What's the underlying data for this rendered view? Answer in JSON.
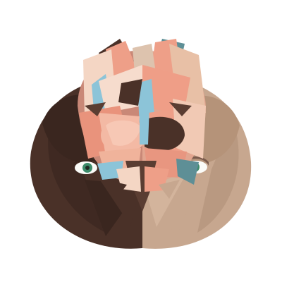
{
  "artwork": {
    "subject": "geometric-paper-cut-face",
    "palette": {
      "background": "#ffffff",
      "dark_brown": "#4a3128",
      "deep_brown": "#3a261f",
      "tan": "#c7a78f",
      "light_tan": "#ddc3ae",
      "salmon": "#ee9f88",
      "peach": "#f3b9a4",
      "cream": "#f4d6c4",
      "sky_blue": "#8cc4d8",
      "teal": "#5e8f96",
      "eye_green": "#3d8b6a",
      "white": "#fbfbf8"
    }
  }
}
